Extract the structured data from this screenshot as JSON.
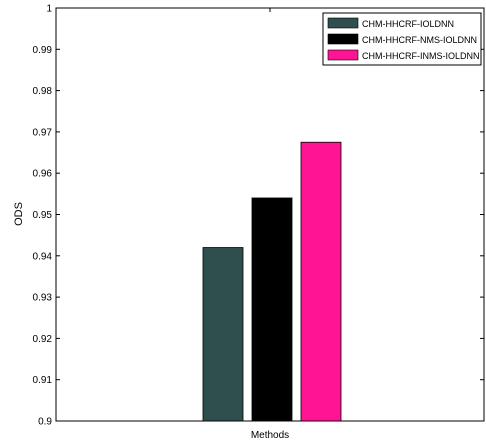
{
  "chart_data": {
    "type": "bar",
    "xlabel": "Methods",
    "ylabel": "ODS",
    "ylim": [
      0.9,
      1.0
    ],
    "yticks": [
      "0.9",
      "0.91",
      "0.92",
      "0.93",
      "0.94",
      "0.95",
      "0.96",
      "0.97",
      "0.98",
      "0.99",
      "1"
    ],
    "grid": false,
    "legend_position": "top-right",
    "series": [
      {
        "name": "CHM-HHCRF-IOLDNN",
        "value": 0.942,
        "color": "#2f4f4f"
      },
      {
        "name": "CHM-HHCRF-NMS-IOLDNN",
        "value": 0.954,
        "color": "#000000"
      },
      {
        "name": "CHM-HHCRF-INMS-IOLDNN",
        "value": 0.9675,
        "color": "#ff1493"
      }
    ]
  }
}
